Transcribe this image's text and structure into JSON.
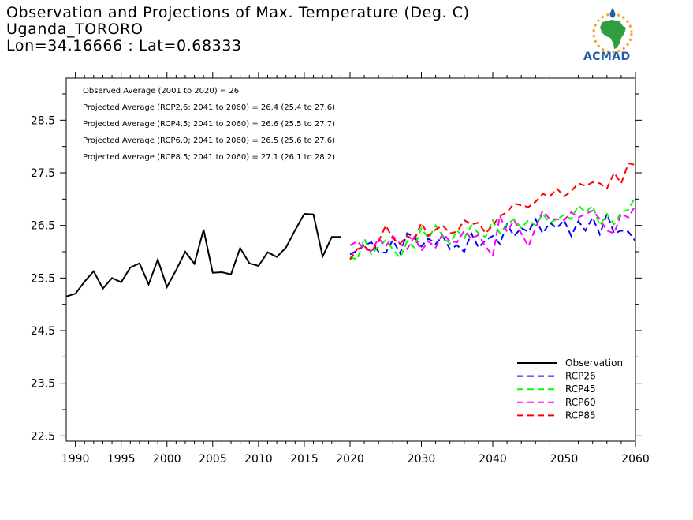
{
  "title_lines": [
    "Observation and Projections of Max. Temperature (Deg. C)",
    "Uganda_TORORO",
    "Lon=34.16666 : Lat=0.68333"
  ],
  "logo": {
    "text": "ACMAD",
    "icon": "africa-map-logo-icon",
    "colors": {
      "green": "#2e9e3e",
      "orange": "#f2a51c",
      "blue": "#1f5fa8"
    }
  },
  "chart_data": {
    "type": "line",
    "title": "Observation and Projections of Max. Temperature (Deg. C)",
    "xlabel": "",
    "ylabel": "",
    "xlim": [
      1989,
      2060
    ],
    "ylim": [
      22.4,
      29.3
    ],
    "xticks_left": [
      1990,
      1995,
      2000,
      2005,
      2010,
      2015,
      2020
    ],
    "xticks_right": [
      2020,
      2030,
      2040,
      2050,
      2060
    ],
    "yticks": [
      22.5,
      23.5,
      24.5,
      25.5,
      26.5,
      27.5,
      28.5
    ],
    "ytick_labels": [
      "22.5",
      "23.5",
      "24.5",
      "25.5",
      "26.5",
      "27.5",
      "28.5"
    ],
    "annotations": [
      "Observed Average (2001 to 2020) = 26",
      "Projected Average (RCP2.6; 2041 to 2060) = 26.4 (25.4 to 27.6)",
      "Projected Average (RCP4.5; 2041 to 2060) = 26.6 (25.5 to 27.7)",
      "Projected Average (RCP6.0; 2041 to 2060) = 26.5 (25.6 to 27.6)",
      "Projected Average (RCP8.5; 2041 to 2060) = 27.1 (26.1 to 28.2)"
    ],
    "legend_position": "bottom-right",
    "series": [
      {
        "name": "Observation",
        "color": "#000000",
        "dash": "solid",
        "x": [
          1989,
          1990,
          1991,
          1992,
          1993,
          1994,
          1995,
          1996,
          1997,
          1998,
          1999,
          2000,
          2001,
          2002,
          2003,
          2004,
          2005,
          2006,
          2007,
          2008,
          2009,
          2010,
          2011,
          2012,
          2013,
          2014,
          2015,
          2016,
          2017,
          2018,
          2019
        ],
        "y": [
          25.15,
          25.2,
          25.43,
          25.63,
          25.3,
          25.5,
          25.42,
          25.7,
          25.78,
          25.38,
          25.85,
          25.33,
          25.65,
          26.0,
          25.77,
          26.42,
          25.6,
          25.61,
          25.57,
          26.07,
          25.78,
          25.73,
          25.99,
          25.9,
          26.08,
          26.41,
          26.72,
          26.71,
          25.91,
          26.28,
          26.28
        ]
      },
      {
        "name": "RCP26",
        "color": "#0000ff",
        "dash": "dashed",
        "x": [
          2020,
          2021,
          2022,
          2023,
          2024,
          2025,
          2026,
          2027,
          2028,
          2029,
          2030,
          2031,
          2032,
          2033,
          2034,
          2035,
          2036,
          2037,
          2038,
          2039,
          2040,
          2041,
          2042,
          2043,
          2044,
          2045,
          2046,
          2047,
          2048,
          2049,
          2050,
          2051,
          2052,
          2053,
          2054,
          2055,
          2056,
          2057,
          2058,
          2059,
          2060
        ],
        "y": [
          25.95,
          26.02,
          26.12,
          26.18,
          26.0,
          25.98,
          26.22,
          25.97,
          26.35,
          26.28,
          26.1,
          26.25,
          26.15,
          26.3,
          26.05,
          26.12,
          26.0,
          26.35,
          26.08,
          26.22,
          26.3,
          26.15,
          26.52,
          26.3,
          26.45,
          26.38,
          26.62,
          26.35,
          26.55,
          26.45,
          26.6,
          26.3,
          26.58,
          26.4,
          26.65,
          26.33,
          26.72,
          26.35,
          26.4,
          26.38,
          26.2
        ]
      },
      {
        "name": "RCP45",
        "color": "#00ff00",
        "dash": "dashed",
        "x": [
          2020,
          2021,
          2022,
          2023,
          2024,
          2025,
          2026,
          2027,
          2028,
          2029,
          2030,
          2031,
          2032,
          2033,
          2034,
          2035,
          2036,
          2037,
          2038,
          2039,
          2040,
          2041,
          2042,
          2043,
          2044,
          2045,
          2046,
          2047,
          2048,
          2049,
          2050,
          2051,
          2052,
          2053,
          2054,
          2055,
          2056,
          2057,
          2058,
          2059,
          2060
        ],
        "y": [
          25.9,
          25.85,
          26.25,
          25.95,
          26.1,
          26.22,
          26.05,
          25.88,
          26.2,
          26.08,
          26.45,
          26.25,
          26.5,
          26.3,
          26.15,
          26.4,
          26.25,
          26.5,
          26.35,
          26.28,
          26.6,
          26.35,
          26.52,
          26.62,
          26.45,
          26.6,
          26.5,
          26.72,
          26.55,
          26.62,
          26.7,
          26.62,
          26.88,
          26.75,
          26.88,
          26.5,
          26.72,
          26.52,
          26.75,
          26.8,
          27.05
        ]
      },
      {
        "name": "RCP60",
        "color": "#ff00ff",
        "dash": "dashed",
        "x": [
          2020,
          2021,
          2022,
          2023,
          2024,
          2025,
          2026,
          2027,
          2028,
          2029,
          2030,
          2031,
          2032,
          2033,
          2034,
          2035,
          2036,
          2037,
          2038,
          2039,
          2040,
          2041,
          2042,
          2043,
          2044,
          2045,
          2046,
          2047,
          2048,
          2049,
          2050,
          2051,
          2052,
          2053,
          2054,
          2055,
          2056,
          2057,
          2058,
          2059,
          2060
        ],
        "y": [
          26.12,
          26.2,
          26.05,
          26.02,
          26.25,
          26.1,
          26.3,
          26.15,
          26.05,
          26.28,
          26.02,
          26.2,
          26.08,
          26.35,
          26.2,
          26.18,
          26.4,
          26.25,
          26.32,
          26.1,
          25.92,
          26.68,
          26.38,
          26.6,
          26.35,
          26.1,
          26.45,
          26.78,
          26.62,
          26.62,
          26.6,
          26.75,
          26.65,
          26.72,
          26.78,
          26.62,
          26.4,
          26.35,
          26.72,
          26.65,
          26.88
        ]
      },
      {
        "name": "RCP85",
        "color": "#ff0000",
        "dash": "dashed",
        "x": [
          2020,
          2021,
          2022,
          2023,
          2024,
          2025,
          2026,
          2027,
          2028,
          2029,
          2030,
          2031,
          2032,
          2033,
          2034,
          2035,
          2036,
          2037,
          2038,
          2039,
          2040,
          2041,
          2042,
          2043,
          2044,
          2045,
          2046,
          2047,
          2048,
          2049,
          2050,
          2051,
          2052,
          2053,
          2054,
          2055,
          2056,
          2057,
          2058,
          2059,
          2060
        ],
        "y": [
          25.85,
          26.05,
          26.1,
          26.0,
          26.2,
          26.5,
          26.25,
          26.15,
          26.3,
          26.22,
          26.55,
          26.3,
          26.42,
          26.5,
          26.35,
          26.38,
          26.6,
          26.52,
          26.55,
          26.35,
          26.5,
          26.68,
          26.75,
          26.92,
          26.88,
          26.85,
          26.95,
          27.1,
          27.05,
          27.2,
          27.05,
          27.15,
          27.3,
          27.25,
          27.32,
          27.3,
          27.2,
          27.5,
          27.3,
          27.68,
          27.65
        ]
      }
    ]
  }
}
